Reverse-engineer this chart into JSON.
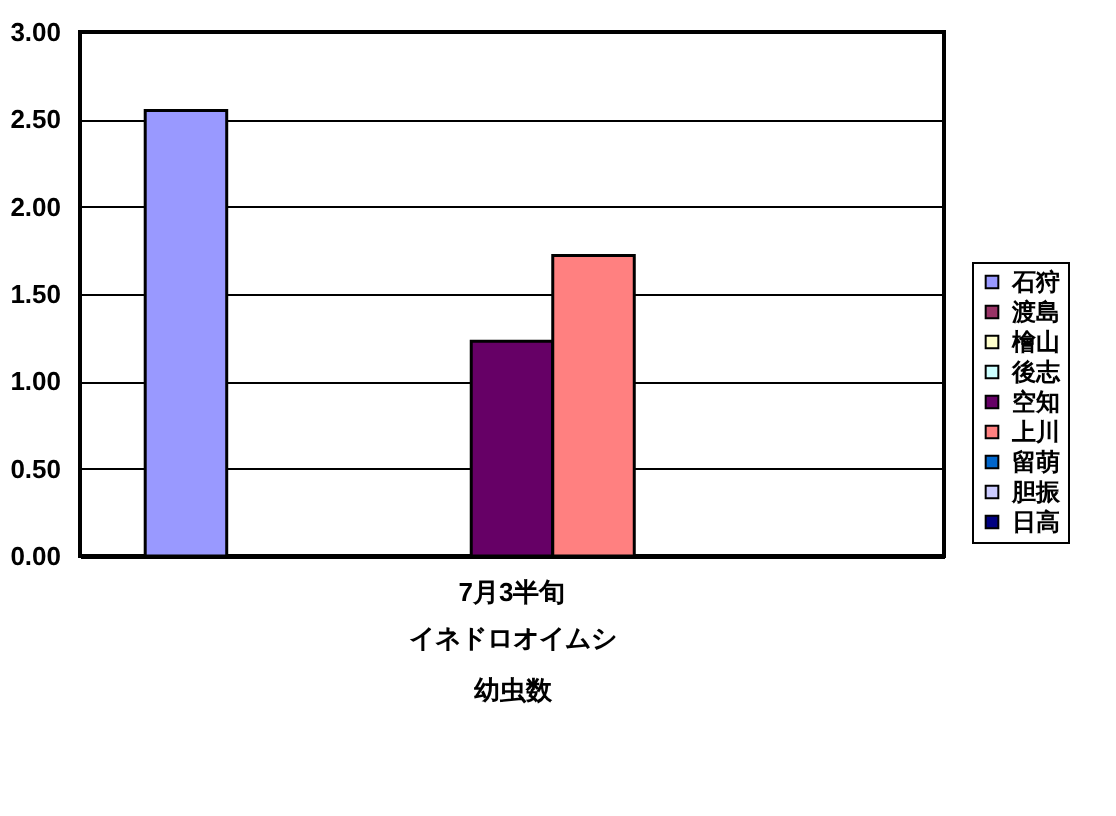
{
  "chart_data": {
    "type": "bar",
    "categories": [
      "7月3半旬"
    ],
    "xlabel": "イネドロオイムシ",
    "annotations": [
      "幼虫数"
    ],
    "series": [
      {
        "name": "石狩",
        "color": "#9999ff",
        "values": [
          2.55
        ]
      },
      {
        "name": "渡島",
        "color": "#993366",
        "values": [
          null
        ]
      },
      {
        "name": "檜山",
        "color": "#ffffcc",
        "values": [
          null
        ]
      },
      {
        "name": "後志",
        "color": "#ccffff",
        "values": [
          null
        ]
      },
      {
        "name": "空知",
        "color": "#660066",
        "values": [
          1.23
        ]
      },
      {
        "name": "上川",
        "color": "#ff8080",
        "values": [
          1.72
        ]
      },
      {
        "name": "留萌",
        "color": "#0066cc",
        "values": [
          null
        ]
      },
      {
        "name": "胆振",
        "color": "#ccccff",
        "values": [
          null
        ]
      },
      {
        "name": "日高",
        "color": "#000080",
        "values": [
          null
        ]
      }
    ],
    "ylim": [
      0,
      3
    ],
    "yticks": [
      {
        "value": 0,
        "label": "0.00"
      },
      {
        "value": 0.5,
        "label": "0.50"
      },
      {
        "value": 1,
        "label": "1.00"
      },
      {
        "value": 1.5,
        "label": "1.50"
      },
      {
        "value": 2,
        "label": "2.00"
      },
      {
        "value": 2.5,
        "label": "2.50"
      },
      {
        "value": 3,
        "label": "3.00"
      }
    ],
    "grid": "y",
    "legend": "right"
  }
}
